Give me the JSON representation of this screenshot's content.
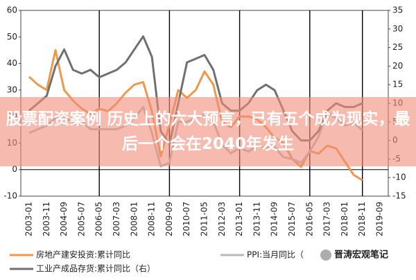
{
  "chart_data": {
    "type": "line",
    "categories": [
      "2003-01",
      null,
      "2003-11",
      null,
      "2004-09",
      null,
      "2005-07",
      null,
      "2006-05",
      null,
      "2007-03",
      null,
      "2008-01",
      null,
      "2008-11",
      null,
      "2009-09",
      null,
      "2010-07",
      null,
      "2011-05",
      null,
      "2012-03",
      null,
      "2013-01",
      null,
      "2013-11",
      null,
      "2014-09",
      null,
      "2015-07",
      null,
      "2016-05",
      null,
      "2017-03",
      null,
      "2018-01",
      null,
      "2018-11",
      null,
      "2019-09"
    ],
    "series": [
      {
        "name": "房地产建安投资:累计同比",
        "color": "#f0974a",
        "values": [
          35,
          32,
          30,
          45,
          30,
          26,
          23,
          21,
          23,
          22,
          25,
          29,
          32,
          33,
          22,
          5,
          17,
          30,
          27,
          30,
          37,
          32,
          18,
          16,
          20,
          20,
          19,
          16,
          12,
          10,
          4,
          1,
          7,
          6,
          9,
          8,
          3,
          -2,
          -4,
          null,
          null
        ]
      },
      {
        "name": "PPI:当月同比（",
        "color": "#b8b8b8",
        "axis": "y2",
        "values": [
          2,
          3,
          4,
          6,
          6,
          5,
          5,
          3,
          3,
          3,
          3,
          4,
          6,
          9,
          2,
          -7,
          -6,
          5,
          5,
          6,
          7,
          5,
          -1,
          -3.5,
          -2,
          -3,
          -1.5,
          -2,
          -1.8,
          -4.5,
          -5,
          -6,
          -3,
          1,
          7.6,
          6,
          4,
          4.7,
          2.7,
          null,
          null
        ]
      },
      {
        "name": "工业产成品存货:累计同比（右）",
        "color": "#707070",
        "axis": "y2",
        "values": [
          8,
          10,
          12,
          20,
          24.5,
          19,
          18,
          19,
          17,
          18,
          19,
          21,
          24.5,
          28,
          22.5,
          2.5,
          -1,
          10,
          21,
          22,
          23,
          19,
          10,
          8,
          8,
          10,
          13.5,
          15,
          13.5,
          8,
          2.5,
          0,
          0,
          2.5,
          8,
          10,
          9,
          9,
          10,
          null,
          null
        ]
      }
    ],
    "ylim": [
      -10,
      60
    ],
    "yticks": [
      -10,
      0,
      10,
      20,
      30,
      40,
      50,
      60
    ],
    "y2lim": [
      -15,
      35
    ],
    "y2ticks": [
      -15,
      -10,
      -5,
      0,
      5,
      10,
      15,
      20,
      25,
      30,
      35
    ]
  },
  "overlay": {
    "headline": "股票配资案例 历史上的六大预言，已有五个成为现实，最后一个会在2040年发生"
  },
  "watermark": "晋涛宏观笔记"
}
